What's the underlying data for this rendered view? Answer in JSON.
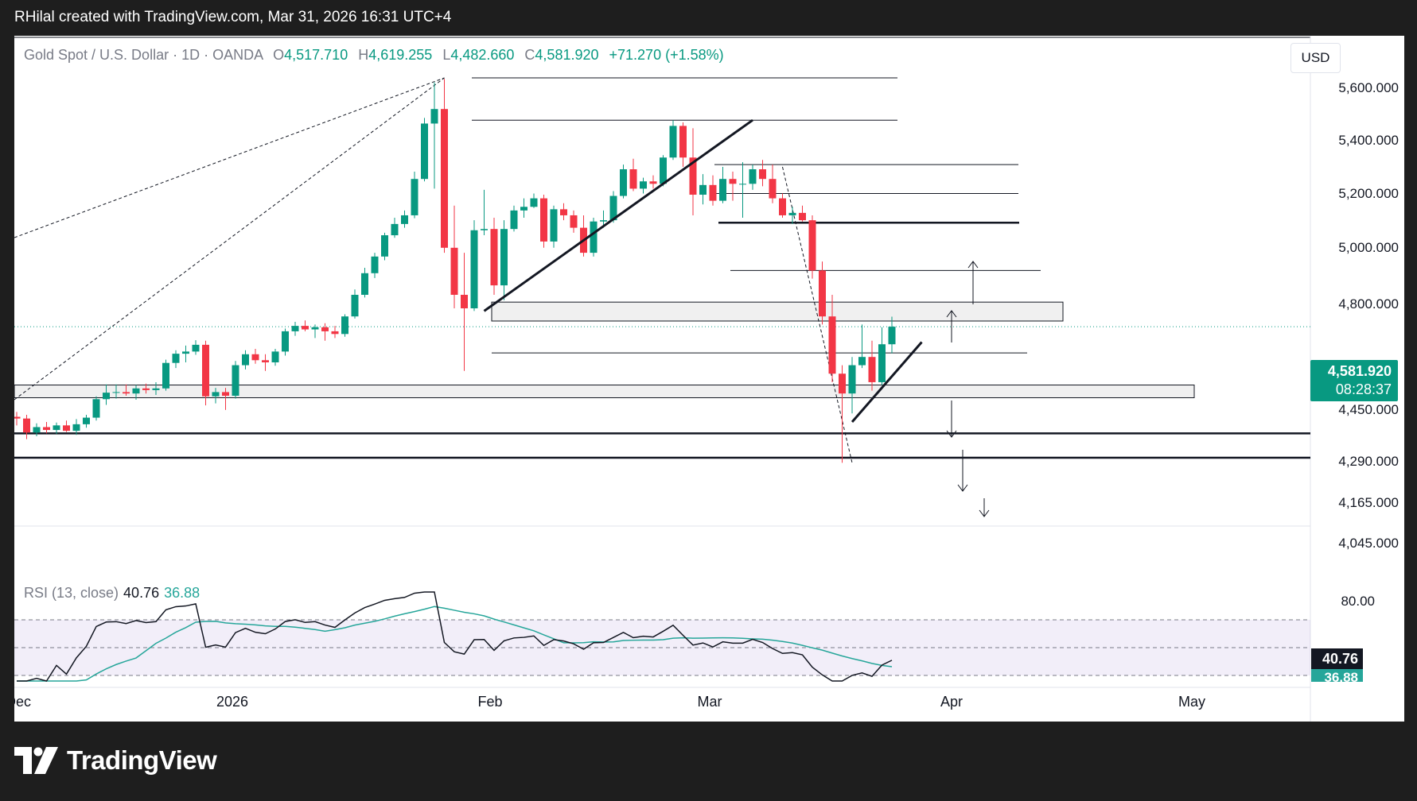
{
  "caption": "RHilal created with TradingView.com, Mar 31, 2026 16:31 UTC+4",
  "legend": {
    "symbol": "Gold Spot / U.S. Dollar · 1D · OANDA",
    "open_key": "O",
    "open": "4,517.710",
    "high_key": "H",
    "high": "4,619.255",
    "low_key": "L",
    "low": "4,482.660",
    "close_key": "C",
    "close": "4,581.920",
    "change": "+71.270 (+1.58%)"
  },
  "currency_button": "USD",
  "price_axis": [
    "5,600.000",
    "5,400.000",
    "5,200.000",
    "5,000.000",
    "4,800.000",
    "4,450.000",
    "4,290.000",
    "4,165.000",
    "4,045.000"
  ],
  "current_price": {
    "value": "4,581.920",
    "countdown": "08:28:37"
  },
  "rsi": {
    "title": "RSI (13, close)",
    "value": "40.76",
    "ma_value": "36.88",
    "axis_label": "80.00",
    "badge_value": "40.76",
    "badge_ma": "36.88"
  },
  "time_axis": [
    "Dec",
    "2026",
    "Feb",
    "Mar",
    "Apr",
    "May"
  ],
  "brand": "TradingView",
  "colors": {
    "up": "#089981",
    "down": "#f23645",
    "rsi_line": "#131722",
    "rsi_ma": "#26a69a",
    "rsi_band": "#7e57c2"
  },
  "chart_data": {
    "type": "candlestick",
    "symbol": "Gold Spot / U.S. Dollar",
    "timeframe": "1D",
    "source": "OANDA",
    "price_range": [
      4000,
      5650
    ],
    "candles": [
      {
        "o": 4258,
        "h": 4275,
        "l": 4228,
        "c": 4252
      },
      {
        "o": 4252,
        "h": 4265,
        "l": 4180,
        "c": 4203
      },
      {
        "o": 4203,
        "h": 4235,
        "l": 4190,
        "c": 4222
      },
      {
        "o": 4222,
        "h": 4240,
        "l": 4200,
        "c": 4212
      },
      {
        "o": 4212,
        "h": 4238,
        "l": 4198,
        "c": 4228
      },
      {
        "o": 4228,
        "h": 4245,
        "l": 4205,
        "c": 4209
      },
      {
        "o": 4209,
        "h": 4250,
        "l": 4195,
        "c": 4232
      },
      {
        "o": 4232,
        "h": 4265,
        "l": 4220,
        "c": 4255
      },
      {
        "o": 4255,
        "h": 4330,
        "l": 4245,
        "c": 4320
      },
      {
        "o": 4320,
        "h": 4372,
        "l": 4300,
        "c": 4343
      },
      {
        "o": 4343,
        "h": 4372,
        "l": 4322,
        "c": 4345
      },
      {
        "o": 4345,
        "h": 4372,
        "l": 4332,
        "c": 4340
      },
      {
        "o": 4340,
        "h": 4370,
        "l": 4318,
        "c": 4358
      },
      {
        "o": 4358,
        "h": 4375,
        "l": 4340,
        "c": 4352
      },
      {
        "o": 4352,
        "h": 4380,
        "l": 4335,
        "c": 4358
      },
      {
        "o": 4358,
        "h": 4460,
        "l": 4350,
        "c": 4448
      },
      {
        "o": 4448,
        "h": 4495,
        "l": 4430,
        "c": 4482
      },
      {
        "o": 4482,
        "h": 4512,
        "l": 4450,
        "c": 4490
      },
      {
        "o": 4490,
        "h": 4532,
        "l": 4478,
        "c": 4515
      },
      {
        "o": 4515,
        "h": 4530,
        "l": 4298,
        "c": 4330
      },
      {
        "o": 4330,
        "h": 4360,
        "l": 4305,
        "c": 4345
      },
      {
        "o": 4345,
        "h": 4360,
        "l": 4282,
        "c": 4332
      },
      {
        "o": 4332,
        "h": 4455,
        "l": 4322,
        "c": 4440
      },
      {
        "o": 4440,
        "h": 4495,
        "l": 4425,
        "c": 4480
      },
      {
        "o": 4480,
        "h": 4500,
        "l": 4445,
        "c": 4458
      },
      {
        "o": 4458,
        "h": 4480,
        "l": 4420,
        "c": 4450
      },
      {
        "o": 4450,
        "h": 4500,
        "l": 4438,
        "c": 4490
      },
      {
        "o": 4490,
        "h": 4575,
        "l": 4475,
        "c": 4565
      },
      {
        "o": 4565,
        "h": 4600,
        "l": 4548,
        "c": 4585
      },
      {
        "o": 4585,
        "h": 4605,
        "l": 4565,
        "c": 4572
      },
      {
        "o": 4572,
        "h": 4590,
        "l": 4540,
        "c": 4580
      },
      {
        "o": 4580,
        "h": 4595,
        "l": 4530,
        "c": 4565
      },
      {
        "o": 4565,
        "h": 4585,
        "l": 4540,
        "c": 4555
      },
      {
        "o": 4555,
        "h": 4628,
        "l": 4545,
        "c": 4620
      },
      {
        "o": 4620,
        "h": 4720,
        "l": 4612,
        "c": 4700
      },
      {
        "o": 4700,
        "h": 4800,
        "l": 4690,
        "c": 4780
      },
      {
        "o": 4780,
        "h": 4860,
        "l": 4762,
        "c": 4845
      },
      {
        "o": 4845,
        "h": 4940,
        "l": 4830,
        "c": 4930
      },
      {
        "o": 4930,
        "h": 5000,
        "l": 4920,
        "c": 4975
      },
      {
        "o": 4975,
        "h": 5030,
        "l": 4960,
        "c": 5010
      },
      {
        "o": 5010,
        "h": 5190,
        "l": 4998,
        "c": 5160
      },
      {
        "o": 5160,
        "h": 5420,
        "l": 5150,
        "c": 5395
      },
      {
        "o": 5395,
        "h": 5580,
        "l": 5120,
        "c": 5460
      },
      {
        "o": 5460,
        "h": 5595,
        "l": 4860,
        "c": 4880
      },
      {
        "o": 4880,
        "h": 5050,
        "l": 4650,
        "c": 4700
      },
      {
        "o": 4700,
        "h": 4860,
        "l": 4420,
        "c": 4650
      },
      {
        "o": 4650,
        "h": 4990,
        "l": 4640,
        "c": 4950
      },
      {
        "o": 4950,
        "h": 5115,
        "l": 4930,
        "c": 4955
      },
      {
        "o": 4955,
        "h": 5000,
        "l": 4700,
        "c": 4735
      },
      {
        "o": 4735,
        "h": 4990,
        "l": 4680,
        "c": 4955
      },
      {
        "o": 4955,
        "h": 5050,
        "l": 4945,
        "c": 5030
      },
      {
        "o": 5030,
        "h": 5080,
        "l": 5000,
        "c": 5045
      },
      {
        "o": 5045,
        "h": 5100,
        "l": 5040,
        "c": 5080
      },
      {
        "o": 5080,
        "h": 5095,
        "l": 4880,
        "c": 4905
      },
      {
        "o": 4905,
        "h": 5050,
        "l": 4880,
        "c": 5035
      },
      {
        "o": 5035,
        "h": 5060,
        "l": 4990,
        "c": 5010
      },
      {
        "o": 5010,
        "h": 5030,
        "l": 4940,
        "c": 4960
      },
      {
        "o": 4960,
        "h": 5010,
        "l": 4845,
        "c": 4860
      },
      {
        "o": 4860,
        "h": 5000,
        "l": 4845,
        "c": 4985
      },
      {
        "o": 4985,
        "h": 5030,
        "l": 4960,
        "c": 4990
      },
      {
        "o": 4990,
        "h": 5110,
        "l": 4980,
        "c": 5090
      },
      {
        "o": 5090,
        "h": 5220,
        "l": 5080,
        "c": 5200
      },
      {
        "o": 5200,
        "h": 5245,
        "l": 5110,
        "c": 5120
      },
      {
        "o": 5120,
        "h": 5165,
        "l": 5100,
        "c": 5150
      },
      {
        "o": 5150,
        "h": 5175,
        "l": 5120,
        "c": 5140
      },
      {
        "o": 5140,
        "h": 5260,
        "l": 5130,
        "c": 5250
      },
      {
        "o": 5250,
        "h": 5410,
        "l": 5240,
        "c": 5385
      },
      {
        "o": 5385,
        "h": 5400,
        "l": 5210,
        "c": 5250
      },
      {
        "o": 5250,
        "h": 5375,
        "l": 5010,
        "c": 5095
      },
      {
        "o": 5095,
        "h": 5180,
        "l": 5055,
        "c": 5135
      },
      {
        "o": 5135,
        "h": 5175,
        "l": 5050,
        "c": 5070
      },
      {
        "o": 5070,
        "h": 5210,
        "l": 5060,
        "c": 5160
      },
      {
        "o": 5160,
        "h": 5190,
        "l": 5070,
        "c": 5140
      },
      {
        "o": 5140,
        "h": 5230,
        "l": 5000,
        "c": 5140
      },
      {
        "o": 5140,
        "h": 5220,
        "l": 5115,
        "c": 5200
      },
      {
        "o": 5200,
        "h": 5240,
        "l": 5130,
        "c": 5160
      },
      {
        "o": 5160,
        "h": 5220,
        "l": 5060,
        "c": 5080
      },
      {
        "o": 5080,
        "h": 5100,
        "l": 5000,
        "c": 5010
      },
      {
        "o": 5010,
        "h": 5045,
        "l": 4975,
        "c": 5020
      },
      {
        "o": 5020,
        "h": 5050,
        "l": 4985,
        "c": 4990
      },
      {
        "o": 4990,
        "h": 5010,
        "l": 4760,
        "c": 4790
      },
      {
        "o": 4790,
        "h": 4825,
        "l": 4590,
        "c": 4620
      },
      {
        "o": 4620,
        "h": 4700,
        "l": 4380,
        "c": 4410
      },
      {
        "o": 4410,
        "h": 4440,
        "l": 4100,
        "c": 4340
      },
      {
        "o": 4340,
        "h": 4470,
        "l": 4270,
        "c": 4440
      },
      {
        "o": 4440,
        "h": 4590,
        "l": 4430,
        "c": 4470
      },
      {
        "o": 4470,
        "h": 4530,
        "l": 4350,
        "c": 4380
      },
      {
        "o": 4380,
        "h": 4580,
        "l": 4370,
        "c": 4517
      },
      {
        "o": 4517,
        "h": 4619,
        "l": 4483,
        "c": 4582
      }
    ],
    "current_price": 4581.92,
    "horizontal_levels": [
      5600,
      5410,
      5220,
      5100,
      4980,
      4790,
      4485,
      4200,
      4117
    ],
    "zones": [
      {
        "from": 4603,
        "to": 4673
      },
      {
        "from": 4325,
        "to": 4370
      }
    ],
    "rsi": {
      "period": 13,
      "source": "close",
      "value": 40.76,
      "ma": 36.88,
      "band": [
        30,
        70
      ],
      "midline": 50
    }
  }
}
